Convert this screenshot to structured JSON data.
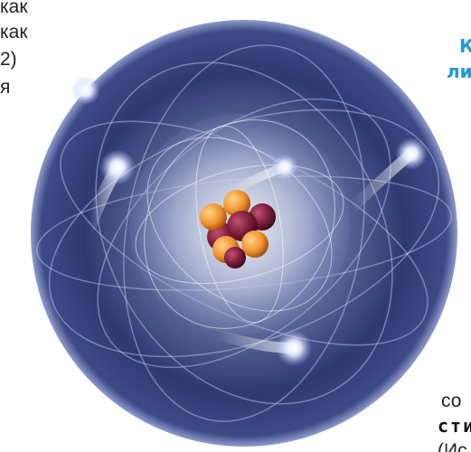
{
  "left_text": {
    "lines": [
      "как",
      "как",
      "2)",
      "я"
    ]
  },
  "right_heading": {
    "lines": [
      "К",
      "ли"
    ]
  },
  "bottom_right_text": {
    "lines": [
      "со",
      "сти",
      "(Ис"
    ]
  }
}
